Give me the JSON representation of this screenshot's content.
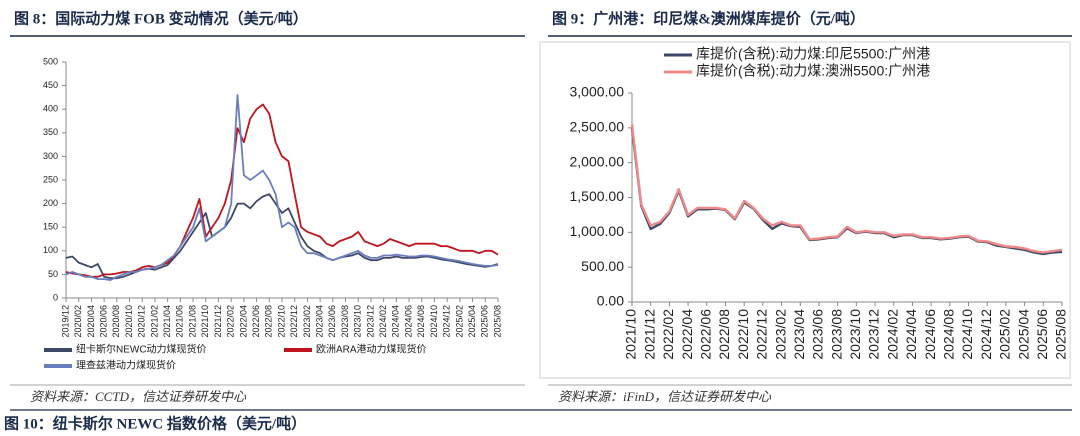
{
  "chart_data": [
    {
      "type": "line",
      "title": "图 8：国际动力煤 FOB 变动情况（美元/吨）",
      "source": "资料来源：CCTD，信达证券研发中心",
      "legend": "bottom",
      "categories": [
        "2019/12",
        null,
        "2020/02",
        null,
        "2020/04",
        null,
        "2020/06",
        null,
        "2020/08",
        null,
        "2020/10",
        null,
        "2020/12",
        null,
        "2021/02",
        null,
        "2021/04",
        null,
        "2021/06",
        null,
        "2021/08",
        null,
        "2021/10",
        null,
        "2021/12",
        null,
        "2022/02",
        null,
        "2022/04",
        null,
        "2022/06",
        null,
        "2022/08",
        null,
        "2022/10",
        null,
        "2022/12",
        null,
        "2023/02",
        null,
        "2023/04",
        null,
        "2023/06",
        null,
        "2023/08",
        null,
        "2023/10",
        null,
        "2023/12",
        null,
        "2024/02",
        null,
        "2024/04",
        null,
        "2024/06",
        null,
        "2024/08",
        null,
        "2024/10",
        null,
        "2024/12",
        null,
        "2025/02",
        null,
        "2025/04",
        null,
        "2025/06",
        null,
        "2025/08"
      ],
      "ylim": [
        0,
        500
      ],
      "yticks": [
        0,
        50,
        100,
        150,
        200,
        250,
        300,
        350,
        400,
        450,
        500
      ],
      "series": [
        {
          "name": "纽卡斯尔NEWC动力煤现货价",
          "color": "#3d4866",
          "values": [
            85,
            88,
            75,
            70,
            65,
            72,
            45,
            42,
            42,
            45,
            50,
            55,
            60,
            62,
            60,
            65,
            70,
            85,
            100,
            120,
            140,
            160,
            180,
            130,
            140,
            150,
            170,
            200,
            200,
            190,
            205,
            215,
            220,
            200,
            180,
            190,
            160,
            130,
            110,
            100,
            95,
            85,
            80,
            85,
            88,
            90,
            95,
            85,
            80,
            80,
            85,
            85,
            88,
            85,
            85,
            85,
            87,
            88,
            85,
            82,
            80,
            78,
            75,
            72,
            70,
            68,
            66,
            68,
            72
          ]
        },
        {
          "name": "欧洲ARA港动力煤现货价",
          "color": "#c0141c",
          "values": [
            55,
            52,
            50,
            48,
            45,
            45,
            50,
            50,
            52,
            55,
            55,
            58,
            65,
            68,
            65,
            70,
            75,
            90,
            110,
            140,
            170,
            210,
            130,
            150,
            170,
            200,
            250,
            360,
            330,
            380,
            400,
            410,
            390,
            330,
            300,
            290,
            220,
            150,
            140,
            135,
            130,
            115,
            110,
            120,
            125,
            130,
            140,
            120,
            115,
            110,
            115,
            125,
            120,
            115,
            110,
            115,
            115,
            115,
            115,
            110,
            110,
            105,
            100,
            100,
            100,
            95,
            100,
            100,
            92
          ]
        },
        {
          "name": "理查兹港动力煤现货价",
          "color": "#6b7fbf",
          "values": [
            50,
            55,
            50,
            45,
            45,
            40,
            40,
            38,
            45,
            50,
            55,
            55,
            60,
            62,
            65,
            70,
            80,
            90,
            110,
            130,
            150,
            190,
            120,
            130,
            140,
            150,
            200,
            430,
            260,
            250,
            260,
            270,
            250,
            220,
            150,
            160,
            150,
            110,
            95,
            95,
            90,
            85,
            80,
            85,
            90,
            95,
            100,
            90,
            85,
            85,
            90,
            90,
            92,
            90,
            88,
            88,
            90,
            90,
            88,
            85,
            82,
            80,
            78,
            75,
            72,
            70,
            68,
            68,
            70
          ]
        }
      ]
    },
    {
      "type": "line",
      "title": "图 9：广州港：印尼煤&澳洲煤库提价（元/吨）",
      "source": "资料来源：iFinD，信达证券研发中心",
      "legend": "top",
      "categories": [
        "2021/10",
        null,
        "2021/12",
        null,
        "2022/02",
        null,
        "2022/04",
        null,
        "2022/06",
        null,
        "2022/08",
        null,
        "2022/10",
        null,
        "2022/12",
        null,
        "2023/02",
        null,
        "2023/04",
        null,
        "2023/06",
        null,
        "2023/08",
        null,
        "2023/10",
        null,
        "2023/12",
        null,
        "2024/02",
        null,
        "2024/04",
        null,
        "2024/06",
        null,
        "2024/08",
        null,
        "2024/10",
        null,
        "2024/12",
        null,
        "2025/02",
        null,
        "2025/04",
        null,
        "2025/06",
        null,
        "2025/08"
      ],
      "ylim": [
        0,
        3000
      ],
      "yticks": [
        {
          "value": 0,
          "label": "0.00"
        },
        {
          "value": 500,
          "label": "500.00"
        },
        {
          "value": 1000,
          "label": "1,000.00"
        },
        {
          "value": 1500,
          "label": "1,500.00"
        },
        {
          "value": 2000,
          "label": "2,000.00"
        },
        {
          "value": 2500,
          "label": "2,500.00"
        },
        {
          "value": 3000,
          "label": "3,000.00"
        }
      ],
      "series": [
        {
          "name": "库提价(含税):动力煤:印尼5500:广州港",
          "color": "#3d4866",
          "values": [
            2500,
            1380,
            1050,
            1120,
            1280,
            1600,
            1230,
            1330,
            1330,
            1340,
            1320,
            1190,
            1430,
            1340,
            1180,
            1050,
            1130,
            1090,
            1080,
            890,
            900,
            920,
            930,
            1060,
            990,
            1010,
            990,
            990,
            930,
            960,
            960,
            920,
            920,
            900,
            910,
            930,
            940,
            870,
            860,
            810,
            790,
            770,
            750,
            710,
            690,
            710,
            720
          ]
        },
        {
          "name": "库提价(含税):动力煤:澳洲5500:广州港",
          "color": "#f08a8a",
          "values": [
            2550,
            1400,
            1100,
            1150,
            1300,
            1620,
            1250,
            1350,
            1350,
            1350,
            1330,
            1200,
            1450,
            1350,
            1200,
            1100,
            1150,
            1100,
            1100,
            900,
            910,
            930,
            940,
            1080,
            1000,
            1020,
            1000,
            1000,
            950,
            970,
            970,
            930,
            930,
            910,
            920,
            940,
            950,
            880,
            870,
            830,
            800,
            790,
            770,
            730,
            710,
            730,
            750
          ]
        }
      ]
    }
  ],
  "footer_caption": "图 10：纽卡斯尔 NEWC 指数价格（美元/吨）"
}
